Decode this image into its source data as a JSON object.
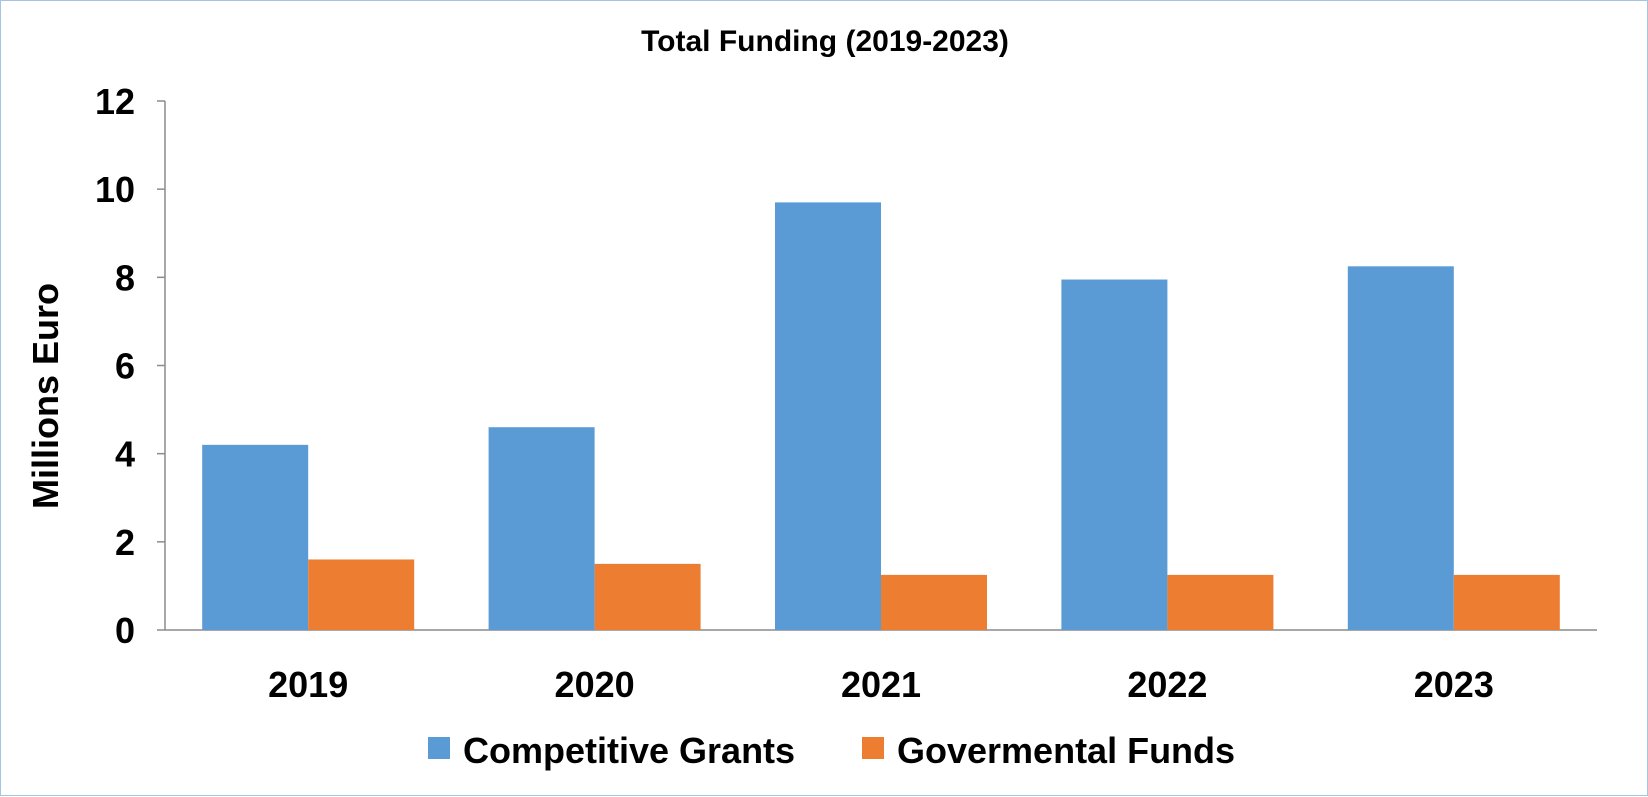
{
  "chart_data": {
    "type": "bar",
    "title": "Total Funding (2019-2023)",
    "xlabel": "",
    "ylabel": "Millions Euro",
    "ylim": [
      0,
      12
    ],
    "yticks": [
      "0",
      "2",
      "4",
      "6",
      "8",
      "10",
      "12"
    ],
    "categories": [
      "2019",
      "2020",
      "2021",
      "2022",
      "2023"
    ],
    "series": [
      {
        "name": "Competitive Grants",
        "color": "#5b9bd5",
        "values": [
          4.2,
          4.6,
          9.7,
          7.95,
          8.25
        ]
      },
      {
        "name": "Govermental Funds",
        "color": "#ed7d31",
        "values": [
          1.6,
          1.5,
          1.25,
          1.25,
          1.25
        ]
      }
    ],
    "grid": false,
    "legend_position": "bottom"
  }
}
